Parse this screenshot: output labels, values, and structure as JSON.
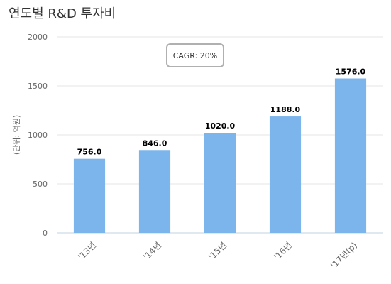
{
  "chart_data": {
    "type": "bar",
    "title": "연도별 R&D 투자비",
    "ylabel": "(단위: 억원)",
    "xlabel": "",
    "categories": [
      "'13년",
      "'14년",
      "'15년",
      "'16년",
      "'17년(p)"
    ],
    "values": [
      756.0,
      846.0,
      1020.0,
      1188.0,
      1576.0
    ],
    "value_labels": [
      "756.0",
      "846.0",
      "1020.0",
      "1188.0",
      "1576.0"
    ],
    "ylim": [
      0,
      2000
    ],
    "yticks": [
      0,
      500,
      1000,
      1500,
      2000
    ],
    "grid": true,
    "legend": "none",
    "annotation": "CAGR: 20%",
    "bar_color": "#7cb5ec"
  }
}
